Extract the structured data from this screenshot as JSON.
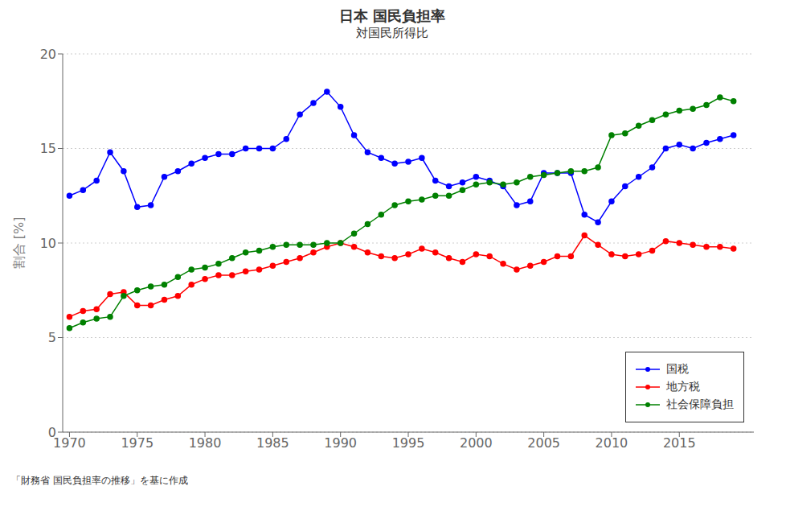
{
  "chart_data": {
    "type": "line",
    "title": "日本 国民負担率",
    "subtitle": "対国民所得比",
    "y_label": "割合 [%]",
    "annotations": [
      "「財務省 国民負担率の推移」を基に作成"
    ],
    "x": [
      1970,
      1971,
      1972,
      1973,
      1974,
      1975,
      1976,
      1977,
      1978,
      1979,
      1980,
      1981,
      1982,
      1983,
      1984,
      1985,
      1986,
      1987,
      1988,
      1989,
      1990,
      1991,
      1992,
      1993,
      1994,
      1995,
      1996,
      1997,
      1998,
      1999,
      2000,
      2001,
      2002,
      2003,
      2004,
      2005,
      2006,
      2007,
      2008,
      2009,
      2010,
      2011,
      2012,
      2013,
      2014,
      2015,
      2016,
      2017,
      2018,
      2019
    ],
    "series": [
      {
        "name": "国税",
        "color": "#0000ff",
        "marker": "circle",
        "values": [
          12.5,
          12.8,
          13.3,
          14.8,
          13.8,
          11.9,
          12.0,
          13.5,
          13.8,
          14.2,
          14.5,
          14.7,
          14.7,
          15.0,
          15.0,
          15.0,
          15.5,
          16.8,
          17.4,
          18.0,
          17.2,
          15.7,
          14.8,
          14.5,
          14.2,
          14.3,
          14.5,
          13.3,
          13.0,
          13.2,
          13.5,
          13.3,
          13.0,
          12.0,
          12.2,
          13.7,
          13.7,
          13.7,
          11.5,
          11.1,
          12.2,
          13.0,
          13.5,
          14.0,
          15.0,
          15.2,
          15.0,
          15.3,
          15.5,
          15.7
        ]
      },
      {
        "name": "地方税",
        "color": "#ff0000",
        "marker": "circle",
        "values": [
          6.1,
          6.4,
          6.5,
          7.3,
          7.4,
          6.7,
          6.7,
          7.0,
          7.2,
          7.8,
          8.1,
          8.3,
          8.3,
          8.5,
          8.6,
          8.8,
          9.0,
          9.2,
          9.5,
          9.8,
          10.0,
          9.8,
          9.5,
          9.3,
          9.2,
          9.4,
          9.7,
          9.5,
          9.2,
          9.0,
          9.4,
          9.3,
          8.9,
          8.6,
          8.8,
          9.0,
          9.3,
          9.3,
          10.4,
          9.9,
          9.4,
          9.3,
          9.4,
          9.6,
          10.1,
          10.0,
          9.9,
          9.8,
          9.8,
          9.7
        ]
      },
      {
        "name": "社会保障負担",
        "color": "#008000",
        "marker": "circle",
        "values": [
          5.5,
          5.8,
          6.0,
          6.1,
          7.2,
          7.5,
          7.7,
          7.8,
          8.2,
          8.6,
          8.7,
          8.9,
          9.2,
          9.5,
          9.6,
          9.8,
          9.9,
          9.9,
          9.9,
          10.0,
          10.0,
          10.5,
          11.0,
          11.5,
          12.0,
          12.2,
          12.3,
          12.5,
          12.5,
          12.8,
          13.1,
          13.2,
          13.1,
          13.2,
          13.5,
          13.6,
          13.7,
          13.8,
          13.8,
          14.0,
          15.7,
          15.8,
          16.2,
          16.5,
          16.8,
          17.0,
          17.1,
          17.3,
          17.7,
          17.5
        ]
      }
    ],
    "xlim": [
      1969.5,
      2020.5
    ],
    "ylim": [
      0,
      20
    ],
    "xticks": [
      1970,
      1975,
      1980,
      1985,
      1990,
      1995,
      2000,
      2005,
      2010,
      2015
    ],
    "yticks": [
      0,
      5,
      10,
      15,
      20
    ],
    "grid": "y",
    "legend": "lower right"
  }
}
